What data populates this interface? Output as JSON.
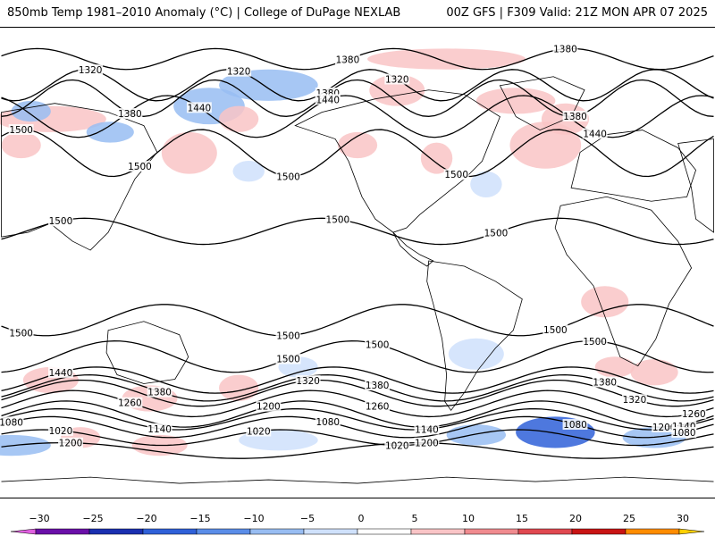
{
  "header": {
    "left": "850mb Temp 1981–2010 Anomaly (°C) | College of DuPage NEXLAB",
    "right": "00Z GFS | F309 Valid: 21Z MON APR 07 2025"
  },
  "map": {
    "projection": "cylindrical-equidistant",
    "anomaly_patches": [
      {
        "lon": -155,
        "lat": 55,
        "rx": 28,
        "ry": 5,
        "anomaly": 7
      },
      {
        "lon": -125,
        "lat": 50,
        "rx": 12,
        "ry": 4,
        "anomaly": -8
      },
      {
        "lon": -165,
        "lat": 58,
        "rx": 10,
        "ry": 4,
        "anomaly": -6
      },
      {
        "lon": -45,
        "lat": 68,
        "rx": 25,
        "ry": 6,
        "anomaly": -6
      },
      {
        "lon": -75,
        "lat": 60,
        "rx": 18,
        "ry": 7,
        "anomaly": -7
      },
      {
        "lon": -85,
        "lat": 42,
        "rx": 14,
        "ry": 8,
        "anomaly": 9
      },
      {
        "lon": -60,
        "lat": 55,
        "rx": 10,
        "ry": 5,
        "anomaly": 6
      },
      {
        "lon": 45,
        "lat": 78,
        "rx": 40,
        "ry": 4,
        "anomaly": 7
      },
      {
        "lon": 20,
        "lat": 66,
        "rx": 14,
        "ry": 6,
        "anomaly": 6
      },
      {
        "lon": 80,
        "lat": 62,
        "rx": 20,
        "ry": 5,
        "anomaly": 5
      },
      {
        "lon": 95,
        "lat": 45,
        "rx": 18,
        "ry": 9,
        "anomaly": 8
      },
      {
        "lon": 105,
        "lat": 55,
        "rx": 12,
        "ry": 6,
        "anomaly": 7
      },
      {
        "lon": 0,
        "lat": 45,
        "rx": 10,
        "ry": 5,
        "anomaly": 6
      },
      {
        "lon": 40,
        "lat": 40,
        "rx": 8,
        "ry": 6,
        "anomaly": 9
      },
      {
        "lon": -170,
        "lat": 45,
        "rx": 10,
        "ry": 5,
        "anomaly": 5
      },
      {
        "lon": 65,
        "lat": 30,
        "rx": 8,
        "ry": 5,
        "anomaly": -5
      },
      {
        "lon": -55,
        "lat": 35,
        "rx": 8,
        "ry": 4,
        "anomaly": -5
      },
      {
        "lon": 125,
        "lat": -15,
        "rx": 12,
        "ry": 6,
        "anomaly": 5
      },
      {
        "lon": 130,
        "lat": -40,
        "rx": 10,
        "ry": 4,
        "anomaly": 5
      },
      {
        "lon": -155,
        "lat": -45,
        "rx": 14,
        "ry": 5,
        "anomaly": 7
      },
      {
        "lon": -105,
        "lat": -52,
        "rx": 14,
        "ry": 5,
        "anomaly": 6
      },
      {
        "lon": -60,
        "lat": -48,
        "rx": 10,
        "ry": 5,
        "anomaly": 6
      },
      {
        "lon": -30,
        "lat": -40,
        "rx": 10,
        "ry": 4,
        "anomaly": -5
      },
      {
        "lon": 60,
        "lat": -35,
        "rx": 14,
        "ry": 6,
        "anomaly": -5
      },
      {
        "lon": 150,
        "lat": -42,
        "rx": 12,
        "ry": 5,
        "anomaly": 6
      },
      {
        "lon": 100,
        "lat": -65,
        "rx": 20,
        "ry": 6,
        "anomaly": -18
      },
      {
        "lon": 150,
        "lat": -67,
        "rx": 16,
        "ry": 4,
        "anomaly": -10
      },
      {
        "lon": 60,
        "lat": -66,
        "rx": 15,
        "ry": 4,
        "anomaly": -8
      },
      {
        "lon": -175,
        "lat": -70,
        "rx": 20,
        "ry": 4,
        "anomaly": -7
      },
      {
        "lon": -40,
        "lat": -68,
        "rx": 20,
        "ry": 4,
        "anomaly": -5
      },
      {
        "lon": -140,
        "lat": -67,
        "rx": 10,
        "ry": 4,
        "anomaly": 5
      },
      {
        "lon": -100,
        "lat": -70,
        "rx": 14,
        "ry": 4,
        "anomaly": 6
      }
    ],
    "contours": [
      {
        "value": "1380",
        "lat": 78,
        "amp": 4,
        "wn": 4,
        "ph": 0.3,
        "labels": [
          -5,
          105
        ]
      },
      {
        "value": "1320",
        "lat": 68,
        "amp": 6,
        "wn": 5,
        "ph": 1.0,
        "labels": [
          -135,
          -60,
          20
        ]
      },
      {
        "value": "1380",
        "lat": 63,
        "amp": 7,
        "wn": 5,
        "ph": 1.6,
        "labels": [
          -115,
          -15,
          110
        ]
      },
      {
        "value": "1440",
        "lat": 56,
        "amp": 8,
        "wn": 4,
        "ph": 2.0,
        "labels": [
          -80,
          -15,
          120
        ]
      },
      {
        "value": "1500",
        "lat": 42,
        "amp": 9,
        "wn": 4,
        "ph": 0.8,
        "labels": [
          -170,
          -110,
          -35,
          50
        ]
      },
      {
        "value": "1500",
        "lat": 12,
        "amp": 5,
        "wn": 3,
        "ph": 2.5,
        "labels": [
          -150,
          -10,
          70
        ]
      },
      {
        "value": "1500",
        "lat": -22,
        "amp": 6,
        "wn": 3,
        "ph": 0.4,
        "labels": [
          -170,
          -35,
          100
        ]
      },
      {
        "value": "1500",
        "lat": -36,
        "amp": 6,
        "wn": 3,
        "ph": 1.7,
        "labels": [
          -35,
          10,
          120
        ]
      },
      {
        "value": "1440",
        "lat": -45,
        "amp": 5,
        "wn": 3,
        "ph": 2.2,
        "labels": [
          -150
        ]
      },
      {
        "value": "1380",
        "lat": -48,
        "amp": 5,
        "wn": 3,
        "ph": 2.4,
        "labels": [
          -100,
          10,
          125
        ]
      },
      {
        "value": "1320",
        "lat": -50,
        "amp": 5,
        "wn": 3,
        "ph": 2.6,
        "labels": [
          -25,
          140
        ]
      },
      {
        "value": "1260",
        "lat": -54,
        "amp": 5,
        "wn": 3,
        "ph": 2.8,
        "labels": [
          -115,
          10,
          170
        ]
      },
      {
        "value": "1200",
        "lat": -58,
        "amp": 5,
        "wn": 3,
        "ph": 3.0,
        "labels": [
          -45,
          155
        ]
      },
      {
        "value": "1140",
        "lat": -60,
        "amp": 4,
        "wn": 3,
        "ph": 3.2,
        "labels": [
          -100,
          35,
          165
        ]
      },
      {
        "value": "1080",
        "lat": -63,
        "amp": 4,
        "wn": 3,
        "ph": 3.4,
        "labels": [
          -175,
          -15,
          110,
          165
        ]
      },
      {
        "value": "1020",
        "lat": -67,
        "amp": 3,
        "wn": 3,
        "ph": 3.6,
        "labels": [
          -150,
          -50,
          20
        ]
      },
      {
        "value": "1200",
        "lat": -72,
        "amp": 3,
        "wn": 2,
        "ph": 0.5,
        "labels": [
          -145,
          35
        ]
      }
    ]
  },
  "colorbar": {
    "ticks": [
      "−30",
      "−25",
      "−20",
      "−15",
      "−10",
      "−5",
      "0",
      "5",
      "10",
      "15",
      "20",
      "25",
      "30"
    ],
    "bins": [
      {
        "min": -30,
        "max": -25,
        "color": "#6a0fa8"
      },
      {
        "min": -25,
        "max": -20,
        "color": "#1a2fb0"
      },
      {
        "min": -20,
        "max": -15,
        "color": "#2f60d8"
      },
      {
        "min": -15,
        "max": -10,
        "color": "#5a8de8"
      },
      {
        "min": -10,
        "max": -5,
        "color": "#98bdf2"
      },
      {
        "min": -5,
        "max": 0,
        "color": "#cfe1fb"
      },
      {
        "min": 0,
        "max": 5,
        "color": "#ffffff"
      },
      {
        "min": 5,
        "max": 10,
        "color": "#f9c4c6"
      },
      {
        "min": 10,
        "max": 15,
        "color": "#f08b8f"
      },
      {
        "min": 15,
        "max": 20,
        "color": "#e04850"
      },
      {
        "min": 20,
        "max": 25,
        "color": "#c81414"
      },
      {
        "min": 25,
        "max": 30,
        "color": "#ff8c00"
      }
    ],
    "low_end_color": "#e060e0",
    "high_end_color": "#ffd000"
  }
}
